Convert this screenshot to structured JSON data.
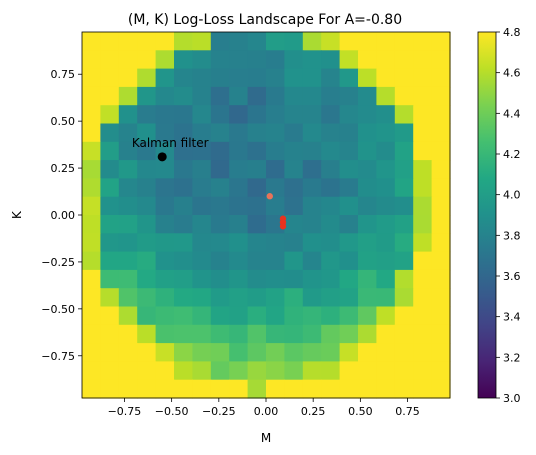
{
  "chart_data": {
    "type": "heatmap",
    "title": "(M, K) Log-Loss Landscape For A=-0.80",
    "xlabel": "M",
    "ylabel": "K",
    "xlim": [
      -0.975,
      0.975
    ],
    "ylim": [
      -0.975,
      0.975
    ],
    "color_range": [
      3.0,
      4.8
    ],
    "colormap": "viridis",
    "xticks": [
      -0.75,
      -0.5,
      -0.25,
      0.0,
      0.25,
      0.5,
      0.75
    ],
    "xtick_labels": [
      "−0.75",
      "−0.50",
      "−0.25",
      "0.00",
      "0.25",
      "0.50",
      "0.75"
    ],
    "yticks": [
      0.75,
      0.5,
      0.25,
      0.0,
      -0.25,
      -0.5,
      -0.75
    ],
    "ytick_labels": [
      "0.75",
      "0.50",
      "0.25",
      "0.00",
      "−0.25",
      "−0.50",
      "−0.75"
    ],
    "colorbar_ticks": [
      3.0,
      3.2,
      3.4,
      3.6,
      3.8,
      4.0,
      4.2,
      4.4,
      4.6,
      4.8
    ],
    "colorbar_tick_labels": [
      "3.0",
      "3.2",
      "3.4",
      "3.6",
      "3.8",
      "4.0",
      "4.2",
      "4.4",
      "4.6",
      "4.8"
    ],
    "annotation": {
      "text": "Kalman filter",
      "x": -0.55,
      "y": 0.31
    },
    "kalman_point": {
      "x": -0.55,
      "y": 0.31,
      "color": "#000000"
    },
    "markers": [
      {
        "x": 0.02,
        "y": 0.1,
        "color": "#e8735a"
      },
      {
        "x": 0.09,
        "y": -0.02,
        "color": "#e8321f"
      },
      {
        "x": 0.09,
        "y": -0.04,
        "color": "#e8321f"
      },
      {
        "x": 0.09,
        "y": -0.06,
        "color": "#e8321f"
      }
    ]
  }
}
